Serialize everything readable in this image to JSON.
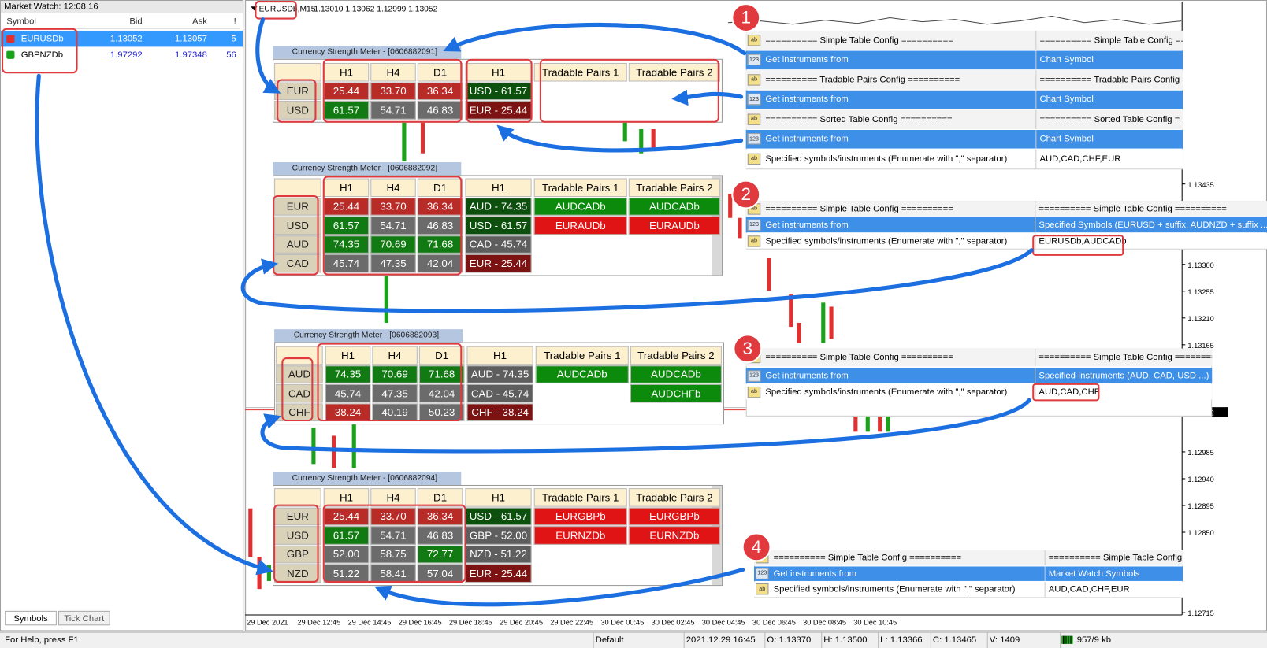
{
  "market_watch": {
    "title": "Market Watch: 12:08:16",
    "columns": [
      "Symbol",
      "Bid",
      "Ask",
      "!"
    ],
    "rows": [
      [
        "EURUSDb",
        "1.13052",
        "1.13057",
        "5"
      ],
      [
        "GBPNZDb",
        "1.97292",
        "1.97348",
        "56"
      ]
    ],
    "tabs": [
      "Symbols",
      "Tick Chart"
    ]
  },
  "chart": {
    "symbol": "EURUSDb,M15",
    "ohlc": "1.13010 1.13062 1.12999 1.13052",
    "price_labels": [
      "1.13435",
      "1.13300",
      "1.13255",
      "1.13210",
      "1.13165",
      "1.12985",
      "1.12940",
      "1.12895",
      "1.12850",
      "1.12715"
    ],
    "current_price": "1.13052",
    "time_labels": [
      "29 Dec 2021",
      "29 Dec 12:45",
      "29 Dec 14:45",
      "29 Dec 16:45",
      "29 Dec 18:45",
      "29 Dec 20:45",
      "29 Dec 22:45",
      "30 Dec 00:45",
      "30 Dec 02:45",
      "30 Dec 04:45",
      "30 Dec 06:45",
      "30 Dec 08:45",
      "30 Dec 10:45"
    ]
  },
  "meters": [
    {
      "title": "Currency Strength Meter - [0606882091]",
      "timeframes": [
        "H1",
        "H4",
        "D1"
      ],
      "currencies": [
        "EUR",
        "USD"
      ],
      "values": [
        [
          "25.44",
          "33.70",
          "36.34"
        ],
        [
          "61.57",
          "54.71",
          "46.83"
        ]
      ],
      "value_colors": [
        [
          "#b92b27",
          "#b92b27",
          "#b92b27"
        ],
        [
          "#127a12",
          "#6b6b6b",
          "#6b6b6b"
        ]
      ],
      "sorted_header": "H1",
      "sorted": [
        "USD - 61.57",
        "EUR - 25.44"
      ],
      "sorted_colors": [
        "#0d4f0d",
        "#7d1212"
      ],
      "pairs_headers": [
        "Tradable Pairs 1",
        "Tradable Pairs 2"
      ],
      "pairs": [],
      "pairs_colors": []
    },
    {
      "title": "Currency Strength Meter - [0606882092]",
      "timeframes": [
        "H1",
        "H4",
        "D1"
      ],
      "currencies": [
        "EUR",
        "USD",
        "AUD",
        "CAD"
      ],
      "values": [
        [
          "25.44",
          "33.70",
          "36.34"
        ],
        [
          "61.57",
          "54.71",
          "46.83"
        ],
        [
          "74.35",
          "70.69",
          "71.68"
        ],
        [
          "45.74",
          "47.35",
          "42.04"
        ]
      ],
      "value_colors": [
        [
          "#b92b27",
          "#b92b27",
          "#b92b27"
        ],
        [
          "#127a12",
          "#6b6b6b",
          "#6b6b6b"
        ],
        [
          "#127a12",
          "#127a12",
          "#127a12"
        ],
        [
          "#6b6b6b",
          "#6b6b6b",
          "#6b6b6b"
        ]
      ],
      "sorted_header": "H1",
      "sorted": [
        "AUD - 74.35",
        "USD - 61.57",
        "CAD - 45.74",
        "EUR - 25.44"
      ],
      "sorted_colors": [
        "#0d4f0d",
        "#0d4f0d",
        "#5e5e5e",
        "#7d1212"
      ],
      "pairs_headers": [
        "Tradable Pairs 1",
        "Tradable Pairs 2"
      ],
      "pairs": [
        [
          "AUDCADb",
          "AUDCADb"
        ],
        [
          "EURAUDb",
          "EURAUDb"
        ]
      ],
      "pairs_colors": [
        [
          "#0b8a0b",
          "#0b8a0b"
        ],
        [
          "#e01414",
          "#e01414"
        ]
      ]
    },
    {
      "title": "Currency Strength Meter - [0606882093]",
      "timeframes": [
        "H1",
        "H4",
        "D1"
      ],
      "currencies": [
        "AUD",
        "CAD",
        "CHF"
      ],
      "values": [
        [
          "74.35",
          "70.69",
          "71.68"
        ],
        [
          "45.74",
          "47.35",
          "42.04"
        ],
        [
          "38.24",
          "40.19",
          "50.23"
        ]
      ],
      "value_colors": [
        [
          "#127a12",
          "#127a12",
          "#127a12"
        ],
        [
          "#6b6b6b",
          "#6b6b6b",
          "#6b6b6b"
        ],
        [
          "#b92b27",
          "#6b6b6b",
          "#6b6b6b"
        ]
      ],
      "sorted_header": "H1",
      "sorted": [
        "AUD - 74.35",
        "CAD - 45.74",
        "CHF - 38.24"
      ],
      "sorted_colors": [
        "#5e5e5e",
        "#5e5e5e",
        "#7d1212"
      ],
      "pairs_headers": [
        "Tradable Pairs 1",
        "Tradable Pairs 2"
      ],
      "pairs": [
        [
          "AUDCADb",
          "AUDCADb"
        ],
        [
          null,
          "AUDCHFb"
        ]
      ],
      "pairs_colors": [
        [
          "#0b8a0b",
          "#0b8a0b"
        ],
        [
          null,
          "#0b8a0b"
        ]
      ]
    },
    {
      "title": "Currency Strength Meter - [0606882094]",
      "timeframes": [
        "H1",
        "H4",
        "D1"
      ],
      "currencies": [
        "EUR",
        "USD",
        "GBP",
        "NZD"
      ],
      "values": [
        [
          "25.44",
          "33.70",
          "36.34"
        ],
        [
          "61.57",
          "54.71",
          "46.83"
        ],
        [
          "52.00",
          "58.75",
          "72.77"
        ],
        [
          "51.22",
          "58.41",
          "57.04"
        ]
      ],
      "value_colors": [
        [
          "#b92b27",
          "#b92b27",
          "#b92b27"
        ],
        [
          "#127a12",
          "#6b6b6b",
          "#6b6b6b"
        ],
        [
          "#6b6b6b",
          "#6b6b6b",
          "#127a12"
        ],
        [
          "#6b6b6b",
          "#6b6b6b",
          "#6b6b6b"
        ]
      ],
      "sorted_header": "H1",
      "sorted": [
        "USD - 61.57",
        "GBP - 52.00",
        "NZD - 51.22",
        "EUR - 25.44"
      ],
      "sorted_colors": [
        "#0d4f0d",
        "#5e5e5e",
        "#5e5e5e",
        "#7d1212"
      ],
      "pairs_headers": [
        "Tradable Pairs 1",
        "Tradable Pairs 2"
      ],
      "pairs": [
        [
          "EURGBPb",
          "EURGBPb"
        ],
        [
          "EURNZDb",
          "EURNZDb"
        ]
      ],
      "pairs_colors": [
        [
          "#e01414",
          "#e01414"
        ],
        [
          "#e01414",
          "#e01414"
        ]
      ]
    }
  ],
  "configs": [
    {
      "badge": "1",
      "rows": [
        {
          "icon": "ab",
          "name": "========== Simple Table Config ==========",
          "value": "========== Simple Table Config =====",
          "selected": false
        },
        {
          "icon": "123",
          "name": "Get instruments from",
          "value": "Chart Symbol",
          "selected": true
        },
        {
          "icon": "ab",
          "name": "========== Tradable Pairs Config ==========",
          "value": "========== Tradable Pairs Config ===",
          "selected": false
        },
        {
          "icon": "123",
          "name": "Get instruments from",
          "value": "Chart Symbol",
          "selected": true
        },
        {
          "icon": "ab",
          "name": "========== Sorted Table Config ==========",
          "value": "========== Sorted Table Config =",
          "selected": false
        },
        {
          "icon": "123",
          "name": "Get instruments from",
          "value": "Chart Symbol",
          "selected": true
        },
        {
          "icon": "ab",
          "name": "Specified symbols/instruments (Enumerate with \",\" separator)",
          "value": "AUD,CAD,CHF,EUR",
          "selected": false
        }
      ]
    },
    {
      "badge": "2",
      "rows": [
        {
          "icon": "ab",
          "name": "========== Simple Table Config ==========",
          "value": "========== Simple Table Config ==========",
          "selected": false
        },
        {
          "icon": "123",
          "name": "Get instruments from",
          "value": "Specified Symbols (EURUSD + suffix, AUDNZD + suffix ...)",
          "selected": true
        },
        {
          "icon": "ab",
          "name": "Specified symbols/instruments (Enumerate with \",\" separator)",
          "value": "EURUSDb,AUDCADb",
          "selected": false
        }
      ]
    },
    {
      "badge": "3",
      "rows": [
        {
          "icon": "ab",
          "name": "========== Simple Table Config ==========",
          "value": "========== Simple Table Config ==========",
          "selected": false
        },
        {
          "icon": "123",
          "name": "Get instruments from",
          "value": "Specified Instruments (AUD, CAD, USD ...)",
          "selected": true
        },
        {
          "icon": "ab",
          "name": "Specified symbols/instruments (Enumerate with \",\" separator)",
          "value": "AUD,CAD,CHF",
          "selected": false
        }
      ]
    },
    {
      "badge": "4",
      "rows": [
        {
          "icon": "ab",
          "name": "========== Simple Table Config ==========",
          "value": "========== Simple Table Config =====",
          "selected": false
        },
        {
          "icon": "123",
          "name": "Get instruments from",
          "value": "Market Watch Symbols",
          "selected": true
        },
        {
          "icon": "ab",
          "name": "Specified symbols/instruments (Enumerate with \",\" separator)",
          "value": "AUD,CAD,CHF,EUR",
          "selected": false
        }
      ]
    }
  ],
  "status_bar": [
    "For Help, press F1",
    "Default",
    "2021.12.29 16:45",
    "O: 1.13370",
    "H: 1.13500",
    "L: 1.13366",
    "C: 1.13465",
    "V: 1409",
    "957/9 kb"
  ]
}
